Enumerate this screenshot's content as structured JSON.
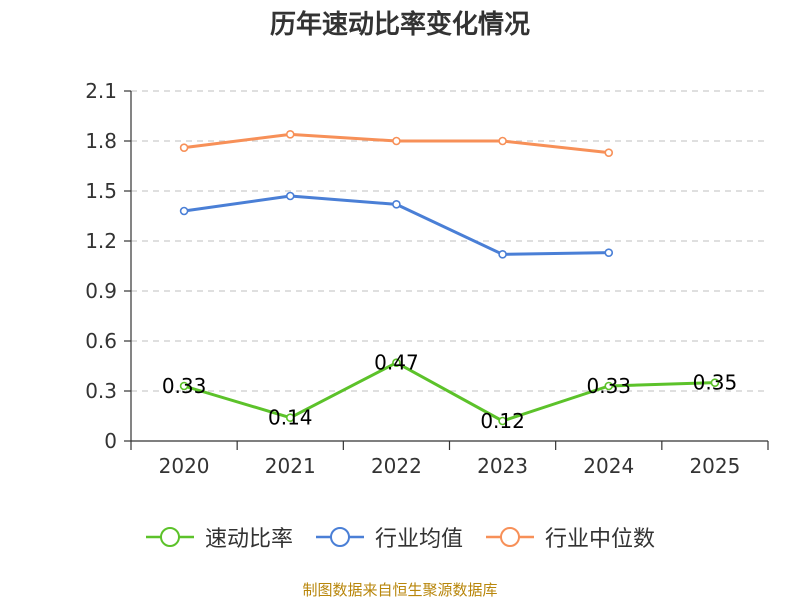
{
  "chart_data": {
    "type": "line",
    "title": "历年速动比率变化情况",
    "categories": [
      "2020",
      "2021",
      "2022",
      "2023",
      "2024",
      "2025"
    ],
    "yticks": [
      "0",
      "0.3",
      "0.6",
      "0.9",
      "1.2",
      "1.5",
      "1.8",
      "2.1"
    ],
    "ylim": [
      0,
      2.1
    ],
    "grid": true,
    "legend_position": "bottom",
    "series": [
      {
        "name": "速动比率",
        "color": "#5cc22a",
        "values": [
          0.33,
          0.14,
          0.47,
          0.12,
          0.33,
          0.35
        ],
        "labels": [
          "0.33",
          "0.14",
          "0.47",
          "0.12",
          "0.33",
          "0.35"
        ]
      },
      {
        "name": "行业均值",
        "color": "#4a7fd6",
        "values": [
          1.38,
          1.47,
          1.42,
          1.12,
          1.13,
          null
        ]
      },
      {
        "name": "行业中位数",
        "color": "#f79058",
        "values": [
          1.76,
          1.84,
          1.8,
          1.8,
          1.73,
          null
        ]
      }
    ]
  },
  "source_text": "制图数据来自恒生聚源数据库"
}
